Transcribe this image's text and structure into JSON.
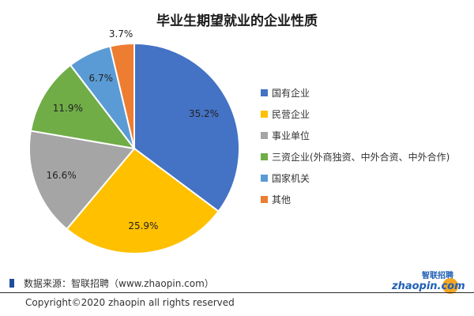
{
  "chart_data": {
    "type": "pie",
    "title": "毕业生期望就业的企业性质",
    "unit": "%",
    "slices": [
      {
        "label": "国有企业",
        "value": 35.2,
        "display": "35.2%",
        "color": "#4472c4"
      },
      {
        "label": "民营企业",
        "value": 25.9,
        "display": "25.9%",
        "color": "#ffc000"
      },
      {
        "label": "事业单位",
        "value": 16.6,
        "display": "16.6%",
        "color": "#a5a5a5"
      },
      {
        "label": "三资企业(外商独资、中外合资、中外合作)",
        "value": 11.9,
        "display": "11.9%",
        "color": "#70ad47"
      },
      {
        "label": "国家机关",
        "value": 6.7,
        "display": "6.7%",
        "color": "#5b9bd5"
      },
      {
        "label": "其他",
        "value": 3.7,
        "display": "3.7%",
        "color": "#ed7d31"
      }
    ],
    "legend_position": "right",
    "start_angle": "12 o'clock",
    "direction": "clockwise"
  },
  "footer": {
    "source": "数据来源：智联招聘（www.zhaopin.com）",
    "logo_brand": "智联招聘",
    "logo_wordmark": "zhaopin.com",
    "copyright": "Copyright©2020 zhaopin all rights reserved"
  },
  "colors": {
    "source_mark": "#1f4e9a",
    "logo_blue": "#1f5fb5",
    "logo_orange": "#f5a623"
  }
}
